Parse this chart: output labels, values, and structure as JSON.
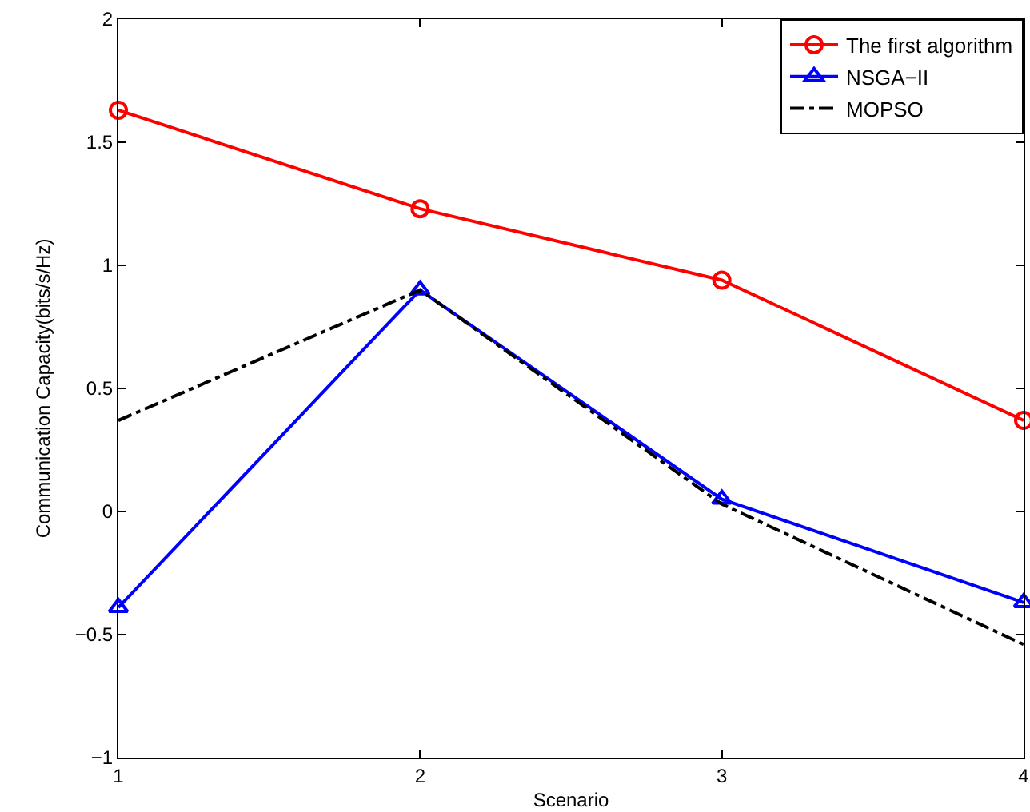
{
  "chart_data": {
    "type": "line",
    "xlabel": "Scenario",
    "ylabel": "Communication Capacity(bits/s/Hz)",
    "x": [
      1,
      2,
      3,
      4
    ],
    "series": [
      {
        "name": "The first algorithm",
        "color": "#ff0000",
        "marker": "circle",
        "line_style": "solid",
        "values": [
          1.63,
          1.23,
          0.94,
          0.37
        ]
      },
      {
        "name": "NSGA−II",
        "color": "#0000ff",
        "marker": "triangle",
        "line_style": "solid",
        "values": [
          -0.39,
          0.9,
          0.05,
          -0.37
        ]
      },
      {
        "name": "MOPSO",
        "color": "#000000",
        "marker": "none",
        "line_style": "dashdot",
        "values": [
          0.37,
          0.9,
          0.03,
          -0.54
        ]
      }
    ],
    "xlim": [
      1,
      4
    ],
    "xticks": [
      1,
      2,
      3,
      4
    ],
    "ylim": [
      -1,
      2
    ],
    "yticks": [
      -1,
      -0.5,
      0,
      0.5,
      1,
      1.5,
      2
    ],
    "grid": false,
    "legend": "top right"
  }
}
